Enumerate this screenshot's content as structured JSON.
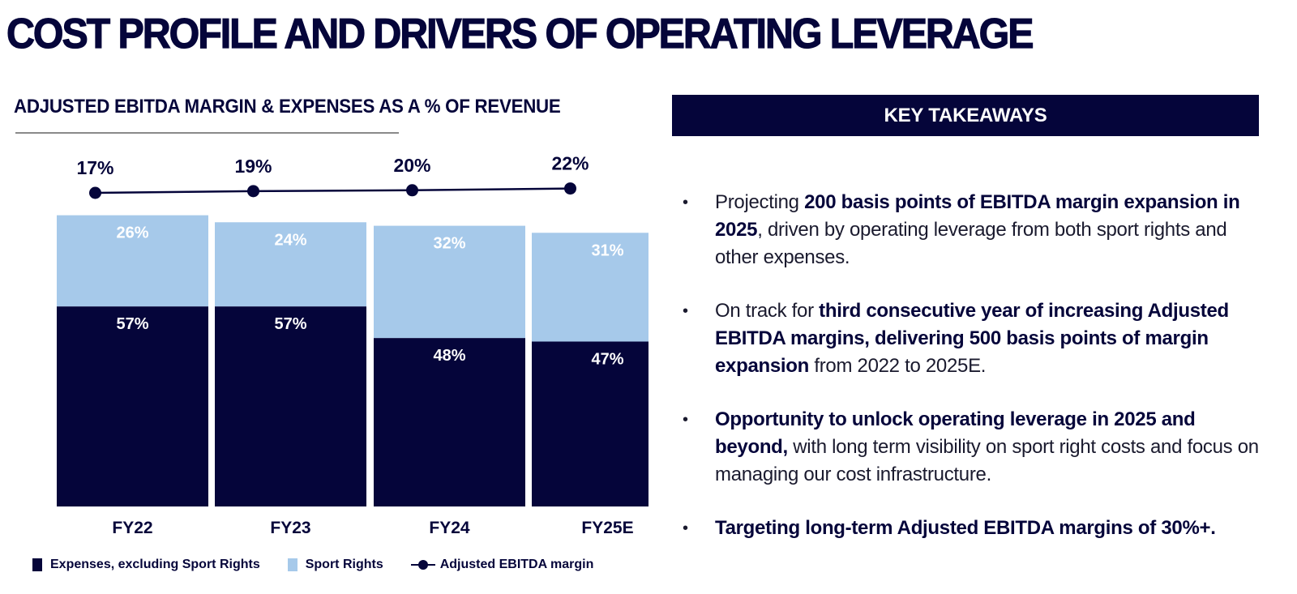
{
  "page": {
    "title": "COST PROFILE AND DRIVERS OF OPERATING LEVERAGE"
  },
  "chart_data": {
    "type": "bar",
    "stacked": true,
    "title": "ADJUSTED EBITDA MARGIN & EXPENSES AS A % OF REVENUE",
    "xlabel": "",
    "ylabel": "",
    "categories": [
      "FY22",
      "FY23",
      "FY24",
      "FY25E"
    ],
    "series": [
      {
        "name": "Expenses, excluding Sport Rights",
        "type": "bar",
        "color": "#05053a",
        "values": [
          57,
          57,
          48,
          47
        ],
        "labels": [
          "57%",
          "57%",
          "48%",
          "47%"
        ]
      },
      {
        "name": "Sport Rights",
        "type": "bar",
        "color": "#a6c9ea",
        "values": [
          26,
          24,
          32,
          31
        ],
        "labels": [
          "26%",
          "24%",
          "32%",
          "31%"
        ]
      },
      {
        "name": "Adjusted EBITDA margin",
        "type": "line",
        "color": "#05053a",
        "values": [
          17,
          19,
          20,
          22
        ],
        "labels": [
          "17%",
          "19%",
          "20%",
          "22%"
        ]
      }
    ],
    "ylim": [
      0,
      100
    ],
    "grid": false,
    "axes_visible": false,
    "legend_position": "bottom"
  },
  "legend": {
    "items": [
      {
        "label": "Expenses, excluding Sport Rights",
        "kind": "swatch",
        "color": "#05053a"
      },
      {
        "label": "Sport Rights",
        "kind": "swatch",
        "color": "#a6c9ea"
      },
      {
        "label": "Adjusted EBITDA margin",
        "kind": "line-marker",
        "color": "#05053a"
      }
    ]
  },
  "takeaways": {
    "header": "KEY TAKEAWAYS",
    "items": [
      {
        "segments": [
          {
            "text": "Projecting ",
            "bold": false
          },
          {
            "text": "200 basis points of EBITDA margin expansion in 2025",
            "bold": true
          },
          {
            "text": ", driven by operating leverage from both sport rights and other expenses.",
            "bold": false
          }
        ]
      },
      {
        "segments": [
          {
            "text": "On track for ",
            "bold": false
          },
          {
            "text": "third consecutive year of increasing Adjusted EBITDA margins, delivering 500 basis points of margin expansion",
            "bold": true
          },
          {
            "text": " from 2022 to 2025E.",
            "bold": false
          }
        ]
      },
      {
        "segments": [
          {
            "text": "Opportunity to unlock operating leverage  in 2025 and beyond,",
            "bold": true
          },
          {
            "text": " with long term visibility on sport right costs and focus on managing our cost infrastructure.",
            "bold": false
          }
        ]
      },
      {
        "segments": [
          {
            "text": "Targeting long-term Adjusted EBITDA margins of 30%+.",
            "bold": true
          }
        ]
      }
    ]
  }
}
